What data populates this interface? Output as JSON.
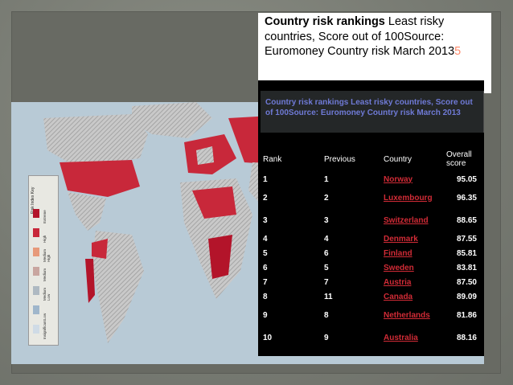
{
  "title": {
    "bold": "Country risk rankings",
    "rest": " Least risky countries, Score out of 100Source: Euromoney Country risk March 2013",
    "tail": "5"
  },
  "caption": "Country risk rankings Least risky countries, Score out of 100Source: Euromoney Country risk March 2013",
  "table": {
    "headers": {
      "rank": "Rank",
      "previous": "Previous",
      "country": "Country",
      "score": "Overall score"
    },
    "rows": [
      {
        "rank": "1",
        "previous": "1",
        "country": "Norway",
        "score": "95.05"
      },
      {
        "rank": "2",
        "previous": "2",
        "country": "Luxembourg",
        "score": "96.35"
      },
      {
        "rank": "3",
        "previous": "3",
        "country": "Switzerland",
        "score": "88.65"
      },
      {
        "rank": "4",
        "previous": "4",
        "country": "Denmark",
        "score": "87.55"
      },
      {
        "rank": "5",
        "previous": "6",
        "country": "Finland",
        "score": "85.81"
      },
      {
        "rank": "6",
        "previous": "5",
        "country": "Sweden",
        "score": "83.81"
      },
      {
        "rank": "7",
        "previous": "7",
        "country": "Austria",
        "score": "87.50"
      },
      {
        "rank": "8",
        "previous": "11",
        "country": "Canada",
        "score": "89.09"
      },
      {
        "rank": "9",
        "previous": "8",
        "country": "Netherlands",
        "score": "81.86"
      },
      {
        "rank": "10",
        "previous": "9",
        "country": "Australia",
        "score": "88.16"
      }
    ]
  },
  "legend": {
    "title": "Risk Index Key",
    "items": [
      {
        "label": "Extreme",
        "color": "#b3142a"
      },
      {
        "label": "High",
        "color": "#c8283a"
      },
      {
        "label": "Medium High",
        "color": "#e79a7a"
      },
      {
        "label": "Medium",
        "color": "#c9a6a0"
      },
      {
        "label": "Medium Low",
        "color": "#aeb9c2"
      },
      {
        "label": "Low",
        "color": "#9fb6cb"
      },
      {
        "label": "Insignificant",
        "color": "#cfdbe6"
      }
    ]
  },
  "colors": {
    "link": "#d12b36",
    "caption": "#6f7ad6",
    "panel": "#000000"
  }
}
